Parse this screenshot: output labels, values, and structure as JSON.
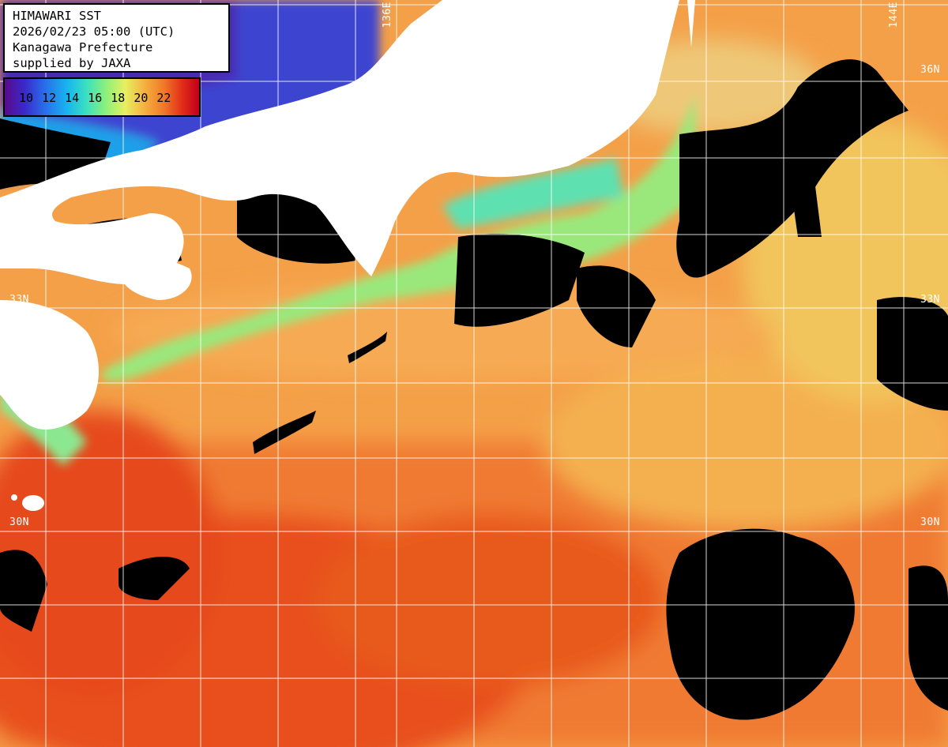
{
  "info": {
    "line1": "HIMAWARI SST",
    "line2": "2026/02/23 05:00 (UTC)",
    "line3": "Kanagawa Prefecture",
    "line4": "supplied by JAXA"
  },
  "color_scale": {
    "ticks": [
      "10",
      "12",
      "14",
      "16",
      "18",
      "20",
      "22"
    ],
    "min_color": "#5a0a8c",
    "max_color": "#c0001c"
  },
  "grid_labels": {
    "lon_136": "136E",
    "lon_144": "144E",
    "lat_36_right": "36N",
    "lat_33_left": "33N",
    "lat_33_right": "33N",
    "lat_30_left": "30N",
    "lat_30_right": "30N"
  },
  "colors": {
    "land": "#ffffff",
    "cloud_no_data": "#000000",
    "warm_sea": "#f07828",
    "cold_sea": "#3a28c8"
  }
}
